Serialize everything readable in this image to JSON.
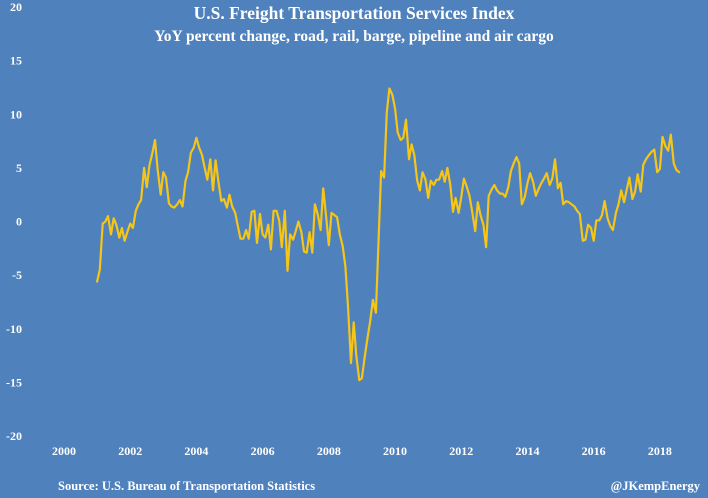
{
  "chart_data": {
    "type": "line",
    "title": "U.S. Freight Transportation Services Index",
    "subtitle": "YoY percent change, road, rail, barge, pipeline and air cargo",
    "xlabel": "",
    "ylabel": "",
    "xlim": [
      2000,
      2019
    ],
    "ylim": [
      -20,
      20
    ],
    "xticks": [
      "2000",
      "2002",
      "2004",
      "2006",
      "2008",
      "2010",
      "2012",
      "2014",
      "2016",
      "2018"
    ],
    "yticks": [
      "20",
      "15",
      "10",
      "5",
      "0",
      "-5",
      "-10",
      "-15",
      "-20"
    ],
    "grid": false,
    "line_color": "#f5c518",
    "source": "Source: U.S. Bureau of Transportation Statistics",
    "credit": "@JKempEnergy",
    "series": [
      {
        "x": [
          2001.0,
          2001.08,
          2001.17,
          2001.25,
          2001.33,
          2001.42,
          2001.5,
          2001.58,
          2001.67,
          2001.75,
          2001.83,
          2001.92,
          2002.0,
          2002.08,
          2002.17,
          2002.25,
          2002.33,
          2002.42,
          2002.5,
          2002.58,
          2002.67,
          2002.75,
          2002.83,
          2002.92,
          2003.0,
          2003.08,
          2003.17,
          2003.25,
          2003.33,
          2003.42,
          2003.5,
          2003.58,
          2003.67,
          2003.75,
          2003.83,
          2003.92,
          2004.0,
          2004.08,
          2004.17,
          2004.25,
          2004.33,
          2004.42,
          2004.5,
          2004.58,
          2004.67,
          2004.75,
          2004.83,
          2004.92,
          2005.0,
          2005.08,
          2005.17,
          2005.25,
          2005.33,
          2005.42,
          2005.5,
          2005.58,
          2005.67,
          2005.75,
          2005.83,
          2005.92,
          2006.0,
          2006.08,
          2006.17,
          2006.25,
          2006.33,
          2006.42,
          2006.5,
          2006.58,
          2006.67,
          2006.75,
          2006.83,
          2006.92,
          2007.0,
          2007.08,
          2007.17,
          2007.25,
          2007.33,
          2007.42,
          2007.5,
          2007.58,
          2007.67,
          2007.75,
          2007.83,
          2007.92,
          2008.0,
          2008.08,
          2008.17,
          2008.25,
          2008.33,
          2008.42,
          2008.5,
          2008.58,
          2008.67,
          2008.75,
          2008.83,
          2008.92,
          2009.0,
          2009.08,
          2009.17,
          2009.25,
          2009.33,
          2009.42,
          2009.5,
          2009.58,
          2009.67,
          2009.75,
          2009.83,
          2009.92,
          2010.0,
          2010.08,
          2010.17,
          2010.25,
          2010.33,
          2010.42,
          2010.5,
          2010.58,
          2010.67,
          2010.75,
          2010.83,
          2010.92,
          2011.0,
          2011.08,
          2011.17,
          2011.25,
          2011.33,
          2011.42,
          2011.5,
          2011.58,
          2011.67,
          2011.75,
          2011.83,
          2011.92,
          2012.0,
          2012.08,
          2012.17,
          2012.25,
          2012.33,
          2012.42,
          2012.5,
          2012.58,
          2012.67,
          2012.75,
          2012.83,
          2012.92,
          2013.0,
          2013.08,
          2013.17,
          2013.25,
          2013.33,
          2013.42,
          2013.5,
          2013.58,
          2013.67,
          2013.75,
          2013.83,
          2013.92,
          2014.0,
          2014.08,
          2014.17,
          2014.25,
          2014.33,
          2014.42,
          2014.5,
          2014.58,
          2014.67,
          2014.75,
          2014.83,
          2014.92,
          2015.0,
          2015.08,
          2015.17,
          2015.25,
          2015.33,
          2015.42,
          2015.5,
          2015.58,
          2015.67,
          2015.75,
          2015.83,
          2015.92,
          2016.0,
          2016.08,
          2016.17,
          2016.25,
          2016.33,
          2016.42,
          2016.5,
          2016.58,
          2016.67,
          2016.75,
          2016.83,
          2016.92,
          2017.0,
          2017.08,
          2017.17,
          2017.25,
          2017.33,
          2017.42,
          2017.5,
          2017.58,
          2017.67,
          2017.75,
          2017.83,
          2017.92,
          2018.0,
          2018.08,
          2018.17,
          2018.25,
          2018.33,
          2018.42,
          2018.5,
          2018.58
        ],
        "values": [
          -5.6,
          -4.5,
          -0.2,
          0.0,
          0.5,
          -1.2,
          0.3,
          -0.3,
          -1.5,
          -0.6,
          -1.8,
          -0.9,
          -0.2,
          -0.6,
          1.0,
          1.6,
          2.0,
          5.0,
          3.2,
          5.2,
          6.4,
          7.6,
          4.8,
          2.5,
          4.6,
          4.1,
          1.7,
          1.4,
          1.3,
          1.6,
          2.0,
          1.4,
          3.8,
          4.6,
          6.4,
          6.9,
          7.8,
          6.9,
          6.2,
          5.0,
          3.9,
          5.8,
          2.9,
          5.7,
          3.6,
          1.9,
          2.1,
          1.3,
          2.5,
          1.4,
          0.8,
          -0.4,
          -1.6,
          -1.6,
          -0.8,
          -1.6,
          0.9,
          1.0,
          -2.0,
          0.7,
          -1.2,
          -1.5,
          -0.3,
          -2.6,
          1.0,
          1.0,
          0.1,
          -2.4,
          1.0,
          -4.6,
          -1.2,
          -1.7,
          -0.9,
          0.0,
          -1.0,
          -2.8,
          -2.9,
          -1.0,
          -2.9,
          1.6,
          0.6,
          -0.8,
          3.1,
          0.4,
          -2.2,
          0.8,
          0.6,
          0.4,
          -1.2,
          -2.3,
          -4.2,
          -7.9,
          -13.2,
          -9.4,
          -12.5,
          -14.8,
          -14.6,
          -12.7,
          -10.8,
          -9.3,
          -7.3,
          -8.5,
          -1.9,
          4.7,
          4.1,
          10.2,
          12.4,
          11.8,
          10.5,
          8.3,
          7.6,
          7.8,
          9.5,
          5.8,
          7.2,
          6.2,
          3.8,
          2.9,
          4.6,
          3.9,
          2.2,
          3.8,
          3.4,
          3.9,
          3.9,
          4.7,
          3.7,
          5.0,
          3.4,
          0.9,
          2.2,
          0.8,
          2.3,
          4.0,
          3.2,
          2.4,
          0.9,
          -0.9,
          1.8,
          0.6,
          -0.3,
          -2.4,
          2.4,
          3.0,
          3.4,
          2.9,
          2.6,
          2.6,
          2.3,
          3.2,
          4.7,
          5.4,
          6.0,
          5.4,
          1.6,
          2.3,
          3.6,
          4.5,
          3.7,
          2.4,
          3.0,
          3.6,
          4.0,
          4.5,
          3.4,
          4.0,
          5.8,
          3.1,
          3.6,
          1.6,
          1.9,
          1.8,
          1.6,
          1.4,
          1.0,
          0.7,
          -1.8,
          -1.7,
          -0.3,
          -0.6,
          -1.8,
          0.1,
          0.1,
          0.6,
          1.9,
          0.3,
          -0.4,
          -0.8,
          0.8,
          1.6,
          2.9,
          1.8,
          3.0,
          4.1,
          2.1,
          2.8,
          4.4,
          2.8,
          5.3,
          5.8,
          6.2,
          6.5,
          6.7,
          4.6,
          4.9,
          7.9,
          7.0,
          6.6,
          8.1,
          5.4,
          4.8,
          4.6
        ]
      }
    ]
  }
}
